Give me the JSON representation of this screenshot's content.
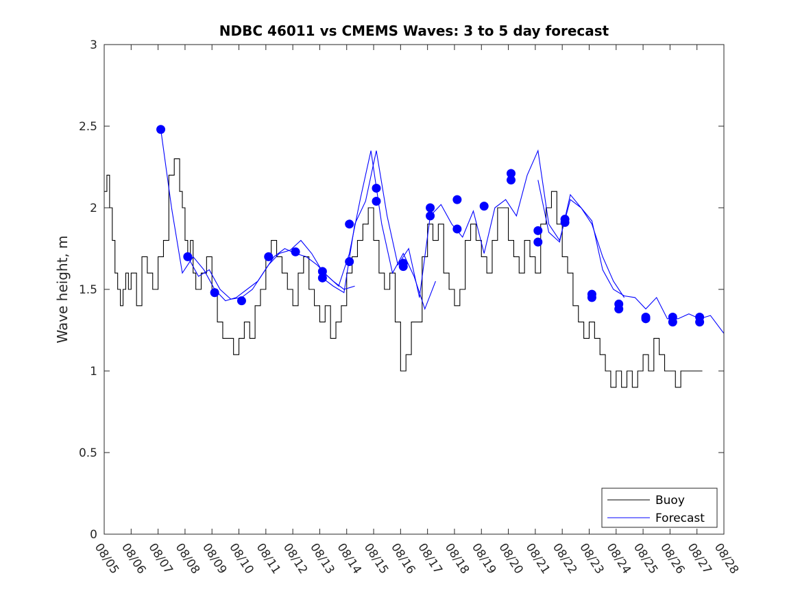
{
  "chart_data": {
    "type": "line",
    "title": "NDBC 46011 vs CMEMS Waves: 3 to 5 day forecast",
    "xlabel": "",
    "ylabel": "Wave height, m",
    "xlim": [
      0,
      23
    ],
    "ylim": [
      0,
      3
    ],
    "x_ticks": [
      "08/05",
      "08/06",
      "08/07",
      "08/08",
      "08/09",
      "08/10",
      "08/11",
      "08/12",
      "08/13",
      "08/14",
      "08/15",
      "08/16",
      "08/17",
      "08/18",
      "08/19",
      "08/20",
      "08/21",
      "08/22",
      "08/23",
      "08/24",
      "08/25",
      "08/26",
      "08/27",
      "08/28"
    ],
    "y_ticks": [
      "0",
      "0.5",
      "1",
      "1.5",
      "2",
      "2.5",
      "3"
    ],
    "legend": {
      "position": "bottom-right",
      "entries": [
        "Buoy",
        "Forecast"
      ]
    },
    "series": [
      {
        "name": "Buoy",
        "color": "#000000",
        "x": [
          0,
          0.1,
          0.2,
          0.3,
          0.4,
          0.5,
          0.6,
          0.7,
          0.8,
          0.9,
          1.0,
          1.2,
          1.4,
          1.6,
          1.8,
          2.0,
          2.2,
          2.4,
          2.6,
          2.8,
          2.9,
          3.0,
          3.1,
          3.2,
          3.3,
          3.4,
          3.6,
          3.8,
          4.0,
          4.2,
          4.4,
          4.6,
          4.8,
          5.0,
          5.2,
          5.4,
          5.6,
          5.8,
          6.0,
          6.2,
          6.4,
          6.6,
          6.8,
          7.0,
          7.2,
          7.4,
          7.6,
          7.8,
          8.0,
          8.2,
          8.4,
          8.6,
          8.8,
          9.0,
          9.2,
          9.4,
          9.6,
          9.8,
          10.0,
          10.2,
          10.4,
          10.6,
          10.8,
          11.0,
          11.2,
          11.4,
          11.6,
          11.8,
          12.0,
          12.2,
          12.4,
          12.6,
          12.8,
          13.0,
          13.2,
          13.4,
          13.6,
          13.8,
          14.0,
          14.2,
          14.4,
          14.6,
          14.8,
          15.0,
          15.2,
          15.4,
          15.6,
          15.8,
          16.0,
          16.2,
          16.4,
          16.6,
          16.8,
          17.0,
          17.2,
          17.4,
          17.6,
          17.8,
          18.0,
          18.2,
          18.4,
          18.6,
          18.8,
          19.0,
          19.2,
          19.4,
          19.6,
          19.8,
          20.0,
          20.2,
          20.4,
          20.6,
          20.8,
          21.0,
          21.2,
          21.4,
          21.6,
          21.8,
          22.0,
          22.2
        ],
        "values": [
          2.1,
          2.2,
          2.0,
          1.8,
          1.6,
          1.5,
          1.4,
          1.5,
          1.6,
          1.5,
          1.6,
          1.4,
          1.7,
          1.6,
          1.5,
          1.7,
          1.8,
          2.2,
          2.3,
          2.1,
          2.0,
          1.8,
          1.7,
          1.8,
          1.6,
          1.5,
          1.6,
          1.7,
          1.5,
          1.3,
          1.2,
          1.2,
          1.1,
          1.2,
          1.3,
          1.2,
          1.4,
          1.5,
          1.7,
          1.8,
          1.7,
          1.6,
          1.5,
          1.4,
          1.6,
          1.7,
          1.5,
          1.4,
          1.3,
          1.4,
          1.2,
          1.3,
          1.4,
          1.6,
          1.7,
          1.8,
          1.9,
          2.0,
          1.8,
          1.6,
          1.5,
          1.6,
          1.3,
          1.0,
          1.1,
          1.3,
          1.3,
          1.7,
          1.9,
          1.8,
          1.9,
          1.6,
          1.5,
          1.4,
          1.5,
          1.8,
          1.9,
          1.8,
          1.7,
          1.6,
          1.8,
          2.0,
          2.0,
          1.8,
          1.7,
          1.6,
          1.8,
          1.7,
          1.6,
          1.9,
          2.0,
          2.1,
          1.9,
          1.7,
          1.6,
          1.4,
          1.3,
          1.2,
          1.3,
          1.2,
          1.1,
          1.0,
          0.9,
          1.0,
          0.9,
          1.0,
          0.9,
          1.0,
          1.1,
          1.0,
          1.2,
          1.1,
          1.0,
          1.0,
          0.9,
          1.0,
          1.0,
          1.0,
          1.0,
          1.0
        ]
      },
      {
        "name": "Forecast",
        "color": "#0000ff",
        "runs": [
          {
            "x": [
              2.1,
              2.5,
              2.9,
              3.3,
              3.7,
              4.1,
              4.5,
              4.9,
              5.3,
              5.7,
              6.1,
              6.5,
              6.9,
              7.3,
              7.7,
              8.1,
              8.5,
              8.9,
              9.3
            ],
            "values": [
              2.48,
              2.0,
              1.6,
              1.7,
              1.62,
              1.5,
              1.43,
              1.45,
              1.5,
              1.55,
              1.65,
              1.72,
              1.74,
              1.8,
              1.72,
              1.61,
              1.55,
              1.5,
              1.52
            ]
          },
          {
            "x": [
              3.1,
              3.5,
              3.9,
              4.3,
              4.7,
              5.1,
              5.5,
              5.9,
              6.3,
              6.7,
              7.1,
              7.5,
              7.9,
              8.3,
              8.7,
              9.1,
              9.5,
              9.9,
              10.3,
              10.7,
              11.1,
              11.5,
              11.9,
              12.3
            ],
            "values": [
              1.7,
              1.58,
              1.62,
              1.5,
              1.44,
              1.45,
              1.5,
              1.6,
              1.7,
              1.75,
              1.72,
              1.7,
              1.65,
              1.58,
              1.52,
              1.72,
              2.05,
              2.35,
              1.9,
              1.6,
              1.72,
              1.58,
              1.38,
              1.55
            ]
          },
          {
            "x": [
              8.1,
              8.5,
              8.9,
              9.3,
              9.7,
              10.1,
              10.5,
              10.9,
              11.3,
              11.7,
              12.1,
              12.5,
              12.9,
              13.3,
              13.7,
              14.1,
              14.5,
              14.9,
              15.3,
              15.7,
              16.1,
              16.5,
              16.9,
              17.3,
              17.7,
              18.1,
              18.5,
              18.9,
              19.3
            ],
            "values": [
              1.57,
              1.52,
              1.48,
              1.9,
              2.04,
              2.35,
              1.95,
              1.65,
              1.75,
              1.45,
              1.95,
              2.02,
              1.9,
              1.82,
              1.98,
              1.72,
              2.0,
              2.05,
              1.95,
              2.2,
              2.35,
              1.9,
              1.8,
              2.05,
              2.0,
              1.9,
              1.7,
              1.55,
              1.45
            ]
          },
          {
            "x": [
              16.1,
              16.5,
              16.9,
              17.3,
              17.7,
              18.1,
              18.5,
              18.9,
              19.3,
              19.7,
              20.1,
              20.5,
              20.9,
              21.3,
              21.7,
              22.1,
              22.5,
              23.0
            ],
            "values": [
              2.17,
              1.85,
              1.79,
              2.08,
              2.0,
              1.92,
              1.62,
              1.5,
              1.46,
              1.45,
              1.38,
              1.45,
              1.32,
              1.32,
              1.35,
              1.32,
              1.34,
              1.23
            ]
          }
        ],
        "markers": {
          "x": [
            2.1,
            3.1,
            4.1,
            5.1,
            6.1,
            7.1,
            8.1,
            8.1,
            9.1,
            9.1,
            10.1,
            10.1,
            11.1,
            11.1,
            12.1,
            12.1,
            13.1,
            13.1,
            14.1,
            15.1,
            15.1,
            16.1,
            16.1,
            17.1,
            17.1,
            18.1,
            18.1,
            19.1,
            19.1,
            20.1,
            20.1,
            21.1,
            21.1,
            22.1,
            22.1
          ],
          "values": [
            2.48,
            1.7,
            1.48,
            1.43,
            1.7,
            1.73,
            1.61,
            1.57,
            1.67,
            1.9,
            2.04,
            2.12,
            1.66,
            1.64,
            1.95,
            2.0,
            1.87,
            2.05,
            2.01,
            2.17,
            2.21,
            1.79,
            1.86,
            1.91,
            1.93,
            1.45,
            1.47,
            1.38,
            1.41,
            1.32,
            1.33,
            1.3,
            1.33,
            1.3,
            1.33
          ]
        }
      }
    ]
  }
}
